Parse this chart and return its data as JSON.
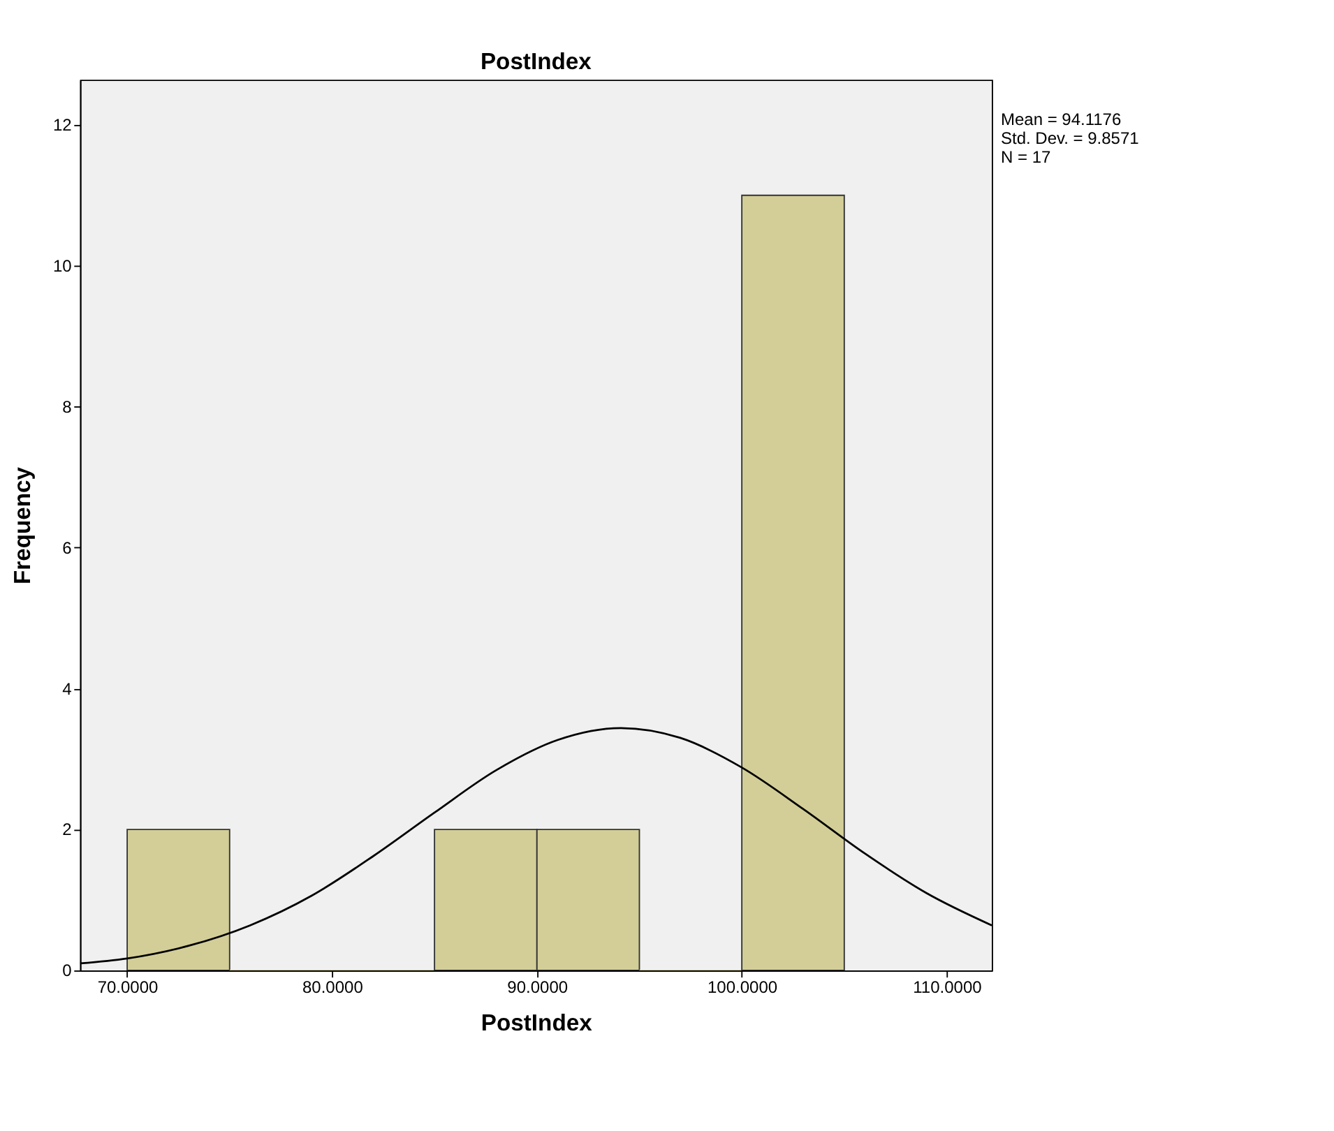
{
  "chart_data": {
    "type": "histogram",
    "title": "PostIndex",
    "xlabel": "PostIndex",
    "ylabel": "Frequency",
    "bins": [
      70,
      75,
      80,
      85,
      90,
      95,
      100,
      105
    ],
    "values": [
      2,
      0,
      0,
      2,
      2,
      0,
      11
    ],
    "color": "#d3ce97",
    "series": [
      {
        "type": "line",
        "color": "#000000",
        "x": [
          67.7,
          70,
          73,
          76,
          79,
          82,
          85,
          88,
          91,
          94.1,
          97,
          100,
          103,
          106,
          109,
          112.2
        ],
        "values": [
          0.1,
          0.17,
          0.35,
          0.64,
          1.06,
          1.62,
          2.24,
          2.84,
          3.27,
          3.44,
          3.3,
          2.88,
          2.29,
          1.66,
          1.1,
          0.64
        ]
      }
    ],
    "xlim": [
      67.7,
      112.2
    ],
    "xticks": [
      {
        "value": 70,
        "label": "70.0000"
      },
      {
        "value": 80,
        "label": "80.0000"
      },
      {
        "value": 90,
        "label": "90.0000"
      },
      {
        "value": 100,
        "label": "100.0000"
      },
      {
        "value": 110,
        "label": "110.0000"
      }
    ],
    "ylim": [
      0,
      12.64
    ],
    "yticks": [
      0,
      2,
      4,
      6,
      8,
      10,
      12
    ],
    "annotations": [
      "Mean = 94.1176",
      "Std. Dev. = 9.8571",
      "N = 17"
    ],
    "grid": false
  }
}
